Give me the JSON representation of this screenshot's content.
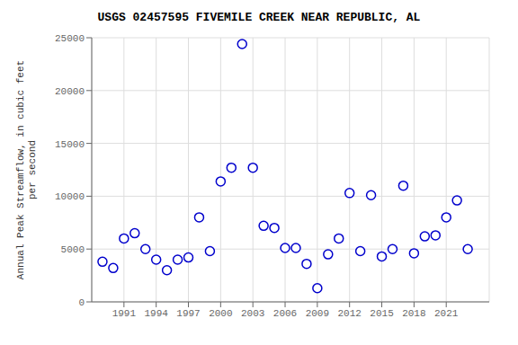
{
  "chart_data": {
    "type": "scatter",
    "title": "USGS 02457595 FIVEMILE CREEK NEAR REPUBLIC, AL",
    "y_label": "Annual Peak Streamflow, in cubic feet\nper second",
    "x": [
      1989,
      1990,
      1991,
      1992,
      1993,
      1994,
      1995,
      1996,
      1997,
      1998,
      1999,
      2000,
      2001,
      2002,
      2003,
      2004,
      2005,
      2006,
      2007,
      2008,
      2009,
      2010,
      2011,
      2012,
      2013,
      2014,
      2015,
      2016,
      2017,
      2018,
      2019,
      2020,
      2021,
      2022,
      2023
    ],
    "values": [
      3800,
      3200,
      6000,
      6500,
      5000,
      4000,
      3000,
      4000,
      4200,
      8000,
      4800,
      11400,
      12700,
      24400,
      12700,
      7200,
      7000,
      5100,
      5100,
      3600,
      1300,
      4500,
      6000,
      10300,
      4800,
      10100,
      4300,
      5000,
      11000,
      4600,
      6200,
      6300,
      8000,
      9600,
      5000
    ],
    "color": "#0000CC",
    "marker": "circle",
    "xlim": [
      1988,
      2025
    ],
    "xticks": [
      1991,
      1994,
      1997,
      2000,
      2003,
      2006,
      2009,
      2012,
      2015,
      2018,
      2021
    ],
    "ylim": [
      0,
      25000
    ],
    "yticks": [
      0,
      5000,
      10000,
      15000,
      20000,
      25000
    ],
    "grid": true
  }
}
